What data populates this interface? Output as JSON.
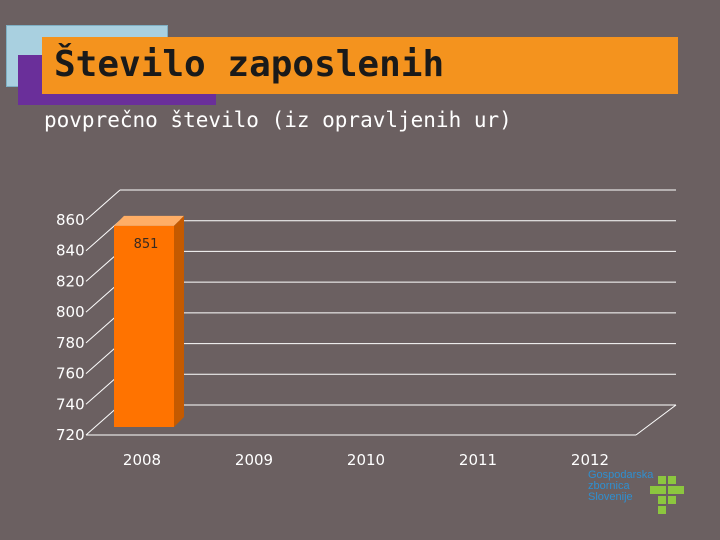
{
  "slide": {
    "title": "Število zaposlenih",
    "subtitle": "povprečno število (iz opravljenih ur)"
  },
  "logo": {
    "lines": [
      "Gospodarska",
      "zbornica",
      "Slovenije"
    ]
  },
  "colors": {
    "background": "#6b6061",
    "title_bar": "#f4931e",
    "bar": "#ff7300",
    "gridline": "#ffffff"
  },
  "chart_data": {
    "type": "bar",
    "categories": [
      "2008",
      "2009",
      "2010",
      "2011",
      "2012"
    ],
    "series": [
      {
        "values": [
          851,
          null,
          null,
          null,
          null
        ]
      }
    ],
    "data_labels": [
      "851",
      "",
      "",
      "",
      ""
    ],
    "ylim": [
      720,
      860
    ],
    "yticks": [
      720,
      740,
      760,
      780,
      800,
      820,
      840,
      860
    ],
    "grid": true,
    "style": "3d"
  }
}
